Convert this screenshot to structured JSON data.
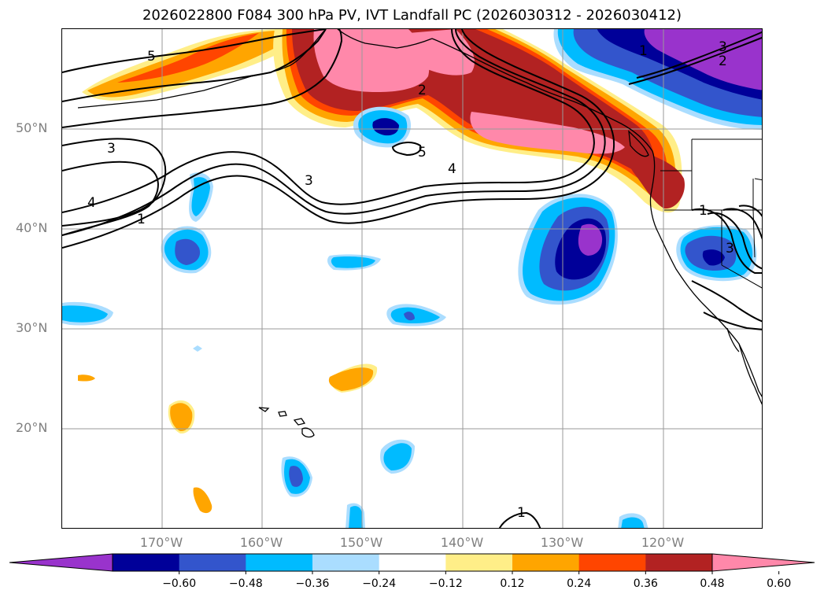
{
  "title": "2026022800 F084 300 hPa PV, IVT Landfall PC (2026030312 - 2026030412)",
  "lat_labels": [
    "50°N",
    "40°N",
    "30°N",
    "20°N"
  ],
  "lon_labels": [
    "170°W",
    "160°W",
    "150°W",
    "140°W",
    "130°W",
    "120°W"
  ],
  "contour_labels": [
    "5",
    "3",
    "4",
    "1",
    "3",
    "2",
    "4",
    "5",
    "1",
    "3",
    "2",
    "1",
    "3",
    "1"
  ],
  "colorbar": {
    "ticks": [
      "−0.60",
      "−0.48",
      "−0.36",
      "−0.24",
      "−0.12",
      "0.12",
      "0.24",
      "0.36",
      "0.48",
      "0.60"
    ],
    "colors": [
      "#9933cc",
      "#000099",
      "#3355cc",
      "#00bbff",
      "#aaddff",
      "#ffffff",
      "#ffee88",
      "#ffa500",
      "#ff4500",
      "#b22222",
      "#ff88aa"
    ]
  },
  "palette": {
    "neg_outer": "#aaddff",
    "neg_1": "#00bbff",
    "neg_2": "#3355cc",
    "neg_3": "#000099",
    "neg_4": "#9933cc",
    "pos_outer": "#ffee88",
    "pos_1": "#ffa500",
    "pos_2": "#ff4500",
    "pos_3": "#b22222",
    "pos_4": "#ff88aa"
  }
}
